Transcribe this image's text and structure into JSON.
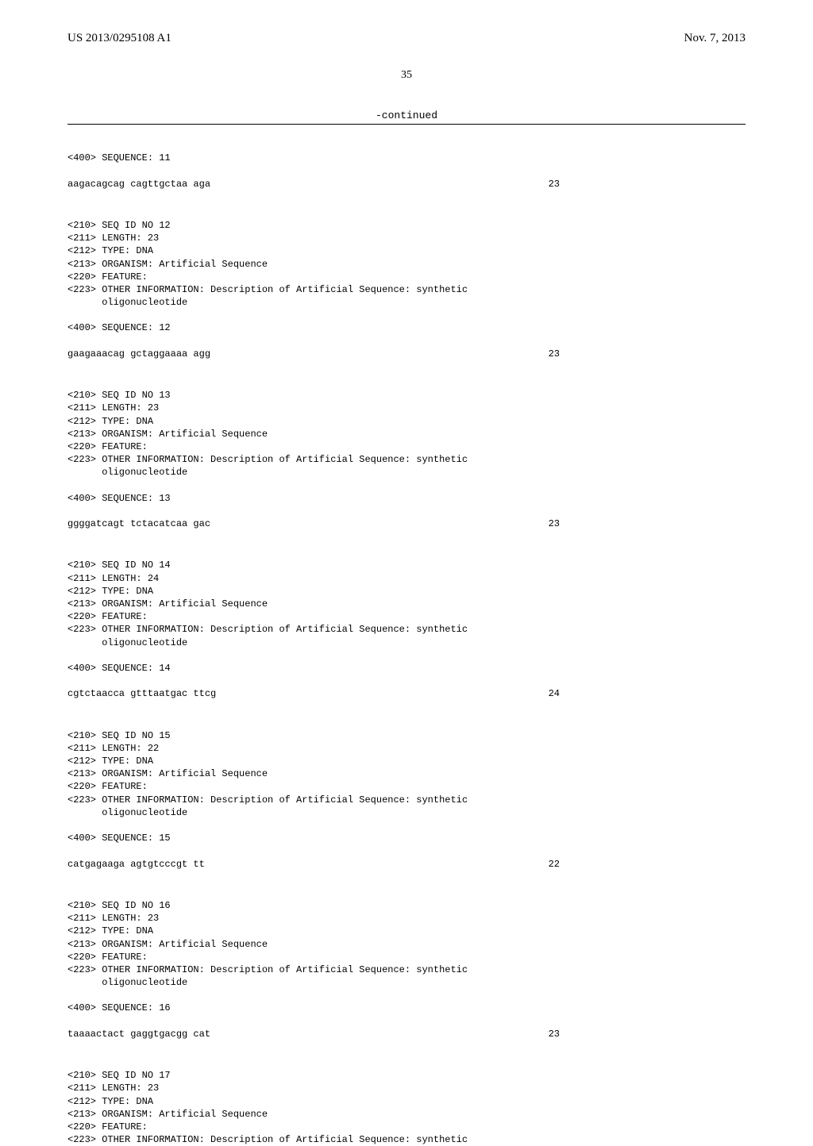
{
  "header": {
    "pub_number": "US 2013/0295108 A1",
    "pub_date": "Nov. 7, 2013"
  },
  "page_number": "35",
  "continued_label": "-continued",
  "entries": [
    {
      "meta": [
        "<400> SEQUENCE: 11"
      ],
      "sequence": "aagacagcag cagttgctaa aga",
      "length": "23"
    },
    {
      "meta": [
        "<210> SEQ ID NO 12",
        "<211> LENGTH: 23",
        "<212> TYPE: DNA",
        "<213> ORGANISM: Artificial Sequence",
        "<220> FEATURE:",
        "<223> OTHER INFORMATION: Description of Artificial Sequence: synthetic",
        "      oligonucleotide",
        "",
        "<400> SEQUENCE: 12"
      ],
      "sequence": "gaagaaacag gctaggaaaa agg",
      "length": "23"
    },
    {
      "meta": [
        "<210> SEQ ID NO 13",
        "<211> LENGTH: 23",
        "<212> TYPE: DNA",
        "<213> ORGANISM: Artificial Sequence",
        "<220> FEATURE:",
        "<223> OTHER INFORMATION: Description of Artificial Sequence: synthetic",
        "      oligonucleotide",
        "",
        "<400> SEQUENCE: 13"
      ],
      "sequence": "ggggatcagt tctacatcaa gac",
      "length": "23"
    },
    {
      "meta": [
        "<210> SEQ ID NO 14",
        "<211> LENGTH: 24",
        "<212> TYPE: DNA",
        "<213> ORGANISM: Artificial Sequence",
        "<220> FEATURE:",
        "<223> OTHER INFORMATION: Description of Artificial Sequence: synthetic",
        "      oligonucleotide",
        "",
        "<400> SEQUENCE: 14"
      ],
      "sequence": "cgtctaacca gtttaatgac ttcg",
      "length": "24"
    },
    {
      "meta": [
        "<210> SEQ ID NO 15",
        "<211> LENGTH: 22",
        "<212> TYPE: DNA",
        "<213> ORGANISM: Artificial Sequence",
        "<220> FEATURE:",
        "<223> OTHER INFORMATION: Description of Artificial Sequence: synthetic",
        "      oligonucleotide",
        "",
        "<400> SEQUENCE: 15"
      ],
      "sequence": "catgagaaga agtgtcccgt tt",
      "length": "22"
    },
    {
      "meta": [
        "<210> SEQ ID NO 16",
        "<211> LENGTH: 23",
        "<212> TYPE: DNA",
        "<213> ORGANISM: Artificial Sequence",
        "<220> FEATURE:",
        "<223> OTHER INFORMATION: Description of Artificial Sequence: synthetic",
        "      oligonucleotide",
        "",
        "<400> SEQUENCE: 16"
      ],
      "sequence": "taaaactact gaggtgacgg cat",
      "length": "23"
    },
    {
      "meta": [
        "<210> SEQ ID NO 17",
        "<211> LENGTH: 23",
        "<212> TYPE: DNA",
        "<213> ORGANISM: Artificial Sequence",
        "<220> FEATURE:",
        "<223> OTHER INFORMATION: Description of Artificial Sequence: synthetic"
      ],
      "sequence": null,
      "length": null
    }
  ]
}
